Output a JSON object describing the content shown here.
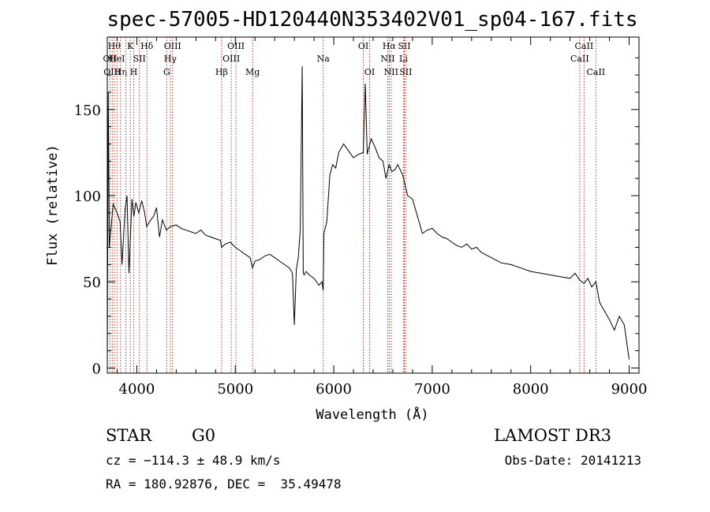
{
  "title": "spec-57005-HD120440N353402V01_sp04-167.fits",
  "info": {
    "class_label": "STAR",
    "subclass": "G0",
    "survey": "LAMOST DR3",
    "cz": "cz = −114.3 ± 48.9 km/s",
    "obs_date": "Obs-Date: 20141213",
    "coords": "RA = 180.92876, DEC =  35.49478"
  },
  "chart_data": {
    "type": "line",
    "xlabel": "Wavelength (Å)",
    "ylabel": "Flux (relative)",
    "xlim": [
      3700,
      9100
    ],
    "ylim": [
      -3,
      192
    ],
    "xticks": [
      4000,
      5000,
      6000,
      7000,
      8000,
      9000
    ],
    "yticks": [
      0,
      50,
      100,
      150
    ],
    "grid": false,
    "series": [
      {
        "x": [
          3700,
          3710,
          3720,
          3760,
          3800,
          3830,
          3850,
          3880,
          3900,
          3920,
          3950,
          3970,
          3990,
          4020,
          4050,
          4080,
          4100,
          4130,
          4170,
          4200,
          4230,
          4260,
          4300,
          4340,
          4400,
          4450,
          4500,
          4550,
          4600,
          4650,
          4700,
          4750,
          4800,
          4850,
          4861,
          4900,
          4950,
          5000,
          5050,
          5100,
          5150,
          5175,
          5200,
          5250,
          5300,
          5350,
          5400,
          5450,
          5500,
          5550,
          5580,
          5600,
          5620,
          5640,
          5660,
          5680,
          5690,
          5700,
          5720,
          5750,
          5800,
          5850,
          5880,
          5893,
          5900,
          5930,
          5960,
          5990,
          6020,
          6050,
          6100,
          6150,
          6200,
          6250,
          6300,
          6320,
          6340,
          6380,
          6420,
          6460,
          6500,
          6530,
          6563,
          6590,
          6620,
          6650,
          6700,
          6750,
          6800,
          6850,
          6900,
          6950,
          7000,
          7050,
          7100,
          7150,
          7200,
          7250,
          7300,
          7350,
          7400,
          7450,
          7500,
          7600,
          7700,
          7800,
          7900,
          8000,
          8100,
          8200,
          8300,
          8400,
          8450,
          8498,
          8542,
          8580,
          8620,
          8662,
          8700,
          8750,
          8800,
          8850,
          8900,
          8950,
          9000
        ],
        "y": [
          3,
          160,
          70,
          95,
          90,
          85,
          60,
          92,
          100,
          55,
          98,
          88,
          96,
          90,
          97,
          90,
          82,
          85,
          88,
          93,
          76,
          86,
          80,
          82,
          83,
          81,
          80,
          79,
          78,
          80,
          77,
          76,
          75,
          74,
          70,
          72,
          73,
          70,
          68,
          66,
          64,
          58,
          62,
          63,
          65,
          66,
          64,
          62,
          60,
          58,
          55,
          25,
          57,
          64,
          80,
          175,
          55,
          54,
          56,
          54,
          52,
          48,
          50,
          45,
          78,
          85,
          112,
          118,
          116,
          125,
          130,
          126,
          122,
          124,
          125,
          165,
          124,
          133,
          128,
          122,
          120,
          110,
          118,
          114,
          115,
          118,
          112,
          100,
          98,
          88,
          78,
          80,
          81,
          78,
          76,
          75,
          73,
          71,
          70,
          72,
          69,
          70,
          67,
          64,
          61,
          60,
          58,
          56,
          55,
          54,
          53,
          52,
          55,
          51,
          49,
          52,
          47,
          50,
          38,
          33,
          28,
          22,
          30,
          25,
          5
        ]
      }
    ],
    "lines": [
      {
        "w": 3727,
        "row": 1,
        "label": "OII"
      },
      {
        "w": 3750,
        "row": 2,
        "label": "OIII"
      },
      {
        "w": 3771,
        "row": 0,
        "label": "Hθ"
      },
      {
        "w": 3798,
        "row": 1,
        "label": "HeI"
      },
      {
        "w": 3835,
        "row": 2,
        "label": "Hη"
      },
      {
        "w": 3889,
        "row": 1,
        "label": ""
      },
      {
        "w": 3934,
        "row": 0,
        "label": "K"
      },
      {
        "w": 3969,
        "row": 2,
        "label": "H"
      },
      {
        "w": 4026,
        "row": 1,
        "label": "SII"
      },
      {
        "w": 4102,
        "row": 0,
        "label": "Hδ"
      },
      {
        "w": 4304,
        "row": 2,
        "label": "G"
      },
      {
        "w": 4340,
        "row": 1,
        "label": "Hγ"
      },
      {
        "w": 4363,
        "row": 0,
        "label": "OIII"
      },
      {
        "w": 4861,
        "row": 2,
        "label": "Hβ"
      },
      {
        "w": 4959,
        "row": 1,
        "label": "OIII"
      },
      {
        "w": 5007,
        "row": 0,
        "label": "OIII"
      },
      {
        "w": 5175,
        "row": 2,
        "label": "Mg"
      },
      {
        "w": 5893,
        "row": 1,
        "label": "Na"
      },
      {
        "w": 6300,
        "row": 0,
        "label": "OI"
      },
      {
        "w": 6364,
        "row": 2,
        "label": "OI"
      },
      {
        "w": 6548,
        "row": 1,
        "label": "NII"
      },
      {
        "w": 6563,
        "row": 0,
        "label": "Hα"
      },
      {
        "w": 6583,
        "row": 2,
        "label": "NII"
      },
      {
        "w": 6708,
        "row": 1,
        "label": "Li"
      },
      {
        "w": 6716,
        "row": 0,
        "label": "SII"
      },
      {
        "w": 6731,
        "row": 2,
        "label": "SII"
      },
      {
        "w": 8498,
        "row": 1,
        "label": "CaII"
      },
      {
        "w": 8542,
        "row": 0,
        "label": "CaII"
      },
      {
        "w": 8662,
        "row": 2,
        "label": "CaII"
      }
    ]
  }
}
